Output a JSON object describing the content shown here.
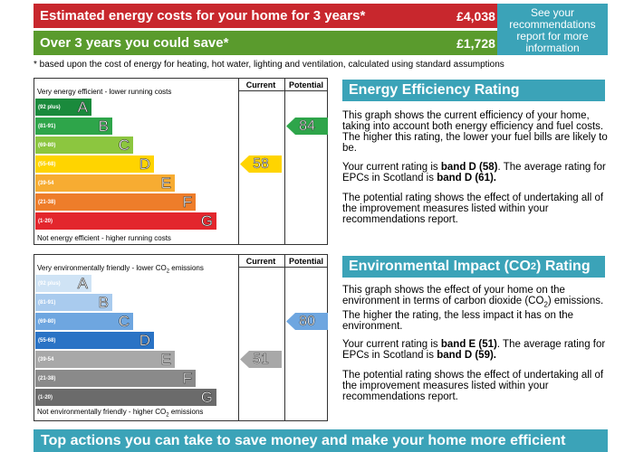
{
  "costs": {
    "estimated_label": "Estimated energy costs for your home for 3 years*",
    "estimated_value": "£4,038",
    "save_label": "Over 3 years you could save*",
    "save_value": "£1,728",
    "see_recommendations": "See your recommendations report for more information",
    "footnote": "* based upon the cost of energy for heating, hot water, lighting and ventilation, calculated using standard assumptions"
  },
  "energy_chart": {
    "top_label": "Very energy efficient - lower running costs",
    "bottom_label": "Not energy efficient - higher running costs",
    "current_header": "Current",
    "potential_header": "Potential",
    "bands": [
      {
        "range": "(92 plus)",
        "letter": "A",
        "color": "#1a8a3c"
      },
      {
        "range": "(81-91)",
        "letter": "B",
        "color": "#2ea54a"
      },
      {
        "range": "(69-80)",
        "letter": "C",
        "color": "#8cc63f"
      },
      {
        "range": "(55-68)",
        "letter": "D",
        "color": "#ffd400"
      },
      {
        "range": "(39-54",
        "letter": "E",
        "color": "#f7ac32"
      },
      {
        "range": "(21-38)",
        "letter": "F",
        "color": "#ee7d2a"
      },
      {
        "range": "(1-20)",
        "letter": "G",
        "color": "#e3262d"
      }
    ],
    "current": {
      "value": "58",
      "band": "D",
      "color": "#ffd400"
    },
    "potential": {
      "value": "84",
      "band": "B",
      "color": "#2ea54a"
    }
  },
  "co2_chart": {
    "top_label": "Very environmentally friendly - lower CO",
    "top_sub": "2",
    "top_suffix": " emissions",
    "bottom_label": "Not environmentally friendly - higher CO",
    "bottom_sub": "2",
    "bottom_suffix": " emissions",
    "current_header": "Current",
    "potential_header": "Potential",
    "bands": [
      {
        "range": "(92 plus)",
        "letter": "A",
        "color": "#cfe3f5"
      },
      {
        "range": "(81-91)",
        "letter": "B",
        "color": "#a9cbee"
      },
      {
        "range": "(69-80)",
        "letter": "C",
        "color": "#6ea6e0"
      },
      {
        "range": "(55-68)",
        "letter": "D",
        "color": "#2a73c5"
      },
      {
        "range": "(39-54",
        "letter": "E",
        "color": "#a8a8a8"
      },
      {
        "range": "(21-38)",
        "letter": "F",
        "color": "#8a8a8a"
      },
      {
        "range": "(1-20)",
        "letter": "G",
        "color": "#6b6b6b"
      }
    ],
    "current": {
      "value": "51",
      "band": "E",
      "color": "#a8a8a8"
    },
    "potential": {
      "value": "80",
      "band": "C",
      "color": "#6ea6e0"
    }
  },
  "efficiency": {
    "title": "Energy Efficiency Rating",
    "p1": "This graph shows the current efficiency of your home, taking into account both energy efficiency and fuel costs. The higher this rating, the lower your fuel bills are likely to be.",
    "p2_pre": "Your current rating is ",
    "p2_bold1": "band D (58)",
    "p2_mid": ". The average rating for EPCs in Scotland is ",
    "p2_bold2": "band D (61).",
    "p3": "The potential rating shows the effect of undertaking all of the improvement measures listed within your recommendations report."
  },
  "environmental": {
    "title_pre": "Environmental Impact (CO",
    "title_sub": "2",
    "title_post": ") Rating",
    "p1_pre": "This graph shows the effect of your home on the environment in terms of carbon dioxide (CO",
    "p1_sub": "2",
    "p1_post": ") emissions. The higher the rating, the less impact it has on the environment.",
    "p2_pre": "Your current rating is ",
    "p2_bold1": "band E (51)",
    "p2_mid": ". The average rating for EPCs in Scotland is ",
    "p2_bold2": "band D (59).",
    "p3": "The potential rating shows the effect of undertaking all of the improvement measures listed within your recommendations report."
  },
  "bottom_bar": "Top actions you can take to save money and make your home more efficient"
}
